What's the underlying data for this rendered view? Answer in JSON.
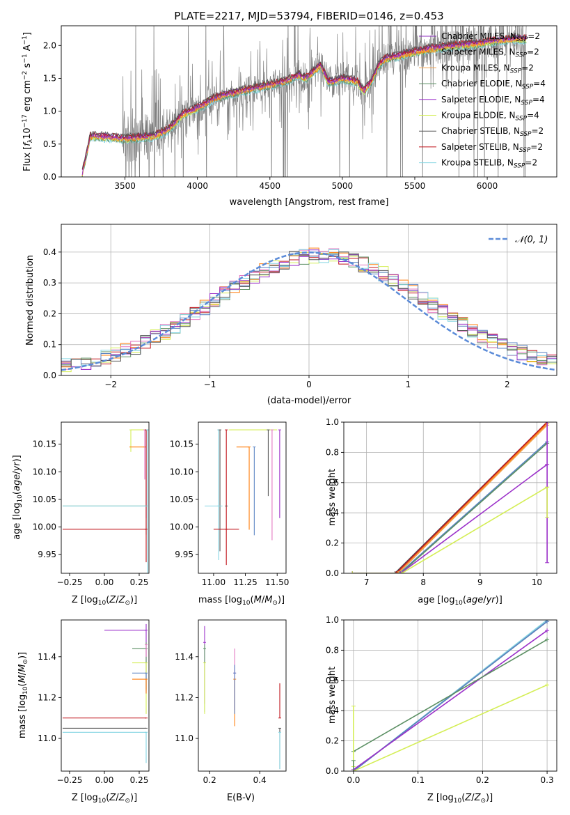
{
  "colors": {
    "chabrier_miles": "#8c2fbf",
    "salpeter_miles": "#ff7f0e",
    "kroupa_miles": "#f0a04b",
    "chabrier_elodie": "#5b8f63",
    "salpeter_elodie": "#9b30c9",
    "kroupa_elodie": "#d4ee55",
    "chabrier_stelib": "#555555",
    "salpeter_stelib": "#c0141c",
    "kroupa_stelib": "#86d6e3",
    "spectrum_gray": "#808080",
    "normal_curve": "#5b8bd8",
    "pink": "#e377c2",
    "blue": "#5a84c4",
    "grid": "#b0b0b0"
  },
  "legend_labels": [
    {
      "pre": "Chabrier MILES, N",
      "sub": "SSP",
      "post": "=2",
      "color_key": "chabrier_miles"
    },
    {
      "pre": "Salpeter MILES, N",
      "sub": "SSP",
      "post": "=2",
      "color_key": "salpeter_miles"
    },
    {
      "pre": "Kroupa MILES, N",
      "sub": "SSP",
      "post": "=2",
      "color_key": "kroupa_miles"
    },
    {
      "pre": "Chabrier ELODIE, N",
      "sub": "SSP",
      "post": "=4",
      "color_key": "chabrier_elodie"
    },
    {
      "pre": "Salpeter ELODIE, N",
      "sub": "SSP",
      "post": "=4",
      "color_key": "salpeter_elodie"
    },
    {
      "pre": "Kroupa ELODIE, N",
      "sub": "SSP",
      "post": "=4",
      "color_key": "kroupa_elodie"
    },
    {
      "pre": "Chabrier STELIB, N",
      "sub": "SSP",
      "post": "=2",
      "color_key": "chabrier_stelib"
    },
    {
      "pre": "Salpeter STELIB, N",
      "sub": "SSP",
      "post": "=2",
      "color_key": "salpeter_stelib"
    },
    {
      "pre": "Kroupa STELIB, N",
      "sub": "SSP",
      "post": "=2",
      "color_key": "kroupa_stelib"
    }
  ],
  "chart_data": [
    {
      "type": "line",
      "title": "PLATE=2217, MJD=53794, FIBERID=0146, z=0.453",
      "xlabel": "wavelength [Angstrom, rest frame]",
      "ylabel": "Flux [fλ10⁻¹⁷ erg cm⁻² s⁻¹ A⁻¹]",
      "xlim": [
        3060,
        6480
      ],
      "ylim": [
        0,
        2.3
      ],
      "xticks": [
        3500,
        4000,
        4500,
        5000,
        5500,
        6000
      ],
      "yticks": [
        0.0,
        0.5,
        1.0,
        1.5,
        2.0
      ],
      "grid": false,
      "legend_position": "top-right",
      "continuum_anchors": {
        "x": [
          3200,
          3260,
          3400,
          3500,
          3700,
          3800,
          3900,
          4000,
          4050,
          4100,
          4200,
          4300,
          4400,
          4500,
          4600,
          4700,
          4750,
          4800,
          4850,
          4900,
          4950,
          5000,
          5100,
          5150,
          5200,
          5250,
          5300,
          5400,
          5500,
          5600,
          5700,
          5800,
          5900,
          6000,
          6100,
          6200,
          6260
        ],
        "y": [
          0.0,
          0.62,
          0.6,
          0.58,
          0.62,
          0.72,
          0.95,
          1.05,
          1.1,
          1.18,
          1.25,
          1.3,
          1.35,
          1.4,
          1.45,
          1.55,
          1.5,
          1.6,
          1.7,
          1.45,
          1.45,
          1.5,
          1.45,
          1.3,
          1.45,
          1.7,
          1.8,
          1.85,
          1.9,
          1.95,
          1.98,
          2.0,
          2.02,
          2.05,
          2.08,
          2.1,
          2.1
        ]
      }
    },
    {
      "type": "line",
      "xlabel": "(data-model)/error",
      "ylabel": "Normed distribution",
      "xlim": [
        -2.5,
        2.5
      ],
      "ylim": [
        0,
        0.49
      ],
      "xticks": [
        -2,
        -1,
        0,
        1,
        2
      ],
      "yticks": [
        0.0,
        0.1,
        0.2,
        0.3,
        0.4
      ],
      "grid": true,
      "legend": "𝒩(0, 1)",
      "legend_position": "top-right",
      "bin_width": 0.1,
      "bin_start": -2.5
    },
    {
      "type": "scatter",
      "xlabel": "Z [log₁₀(Z/Z☉)]",
      "ylabel": "age  [log₁₀(age/yr)]",
      "xlim": [
        -0.31,
        0.32
      ],
      "ylim": [
        9.916,
        10.19
      ],
      "xticks": [
        -0.25,
        0.0,
        0.25
      ],
      "xtick_labels": [
        "−0.25",
        "0.00",
        "0.25"
      ],
      "yticks": [
        9.95,
        10.0,
        10.05,
        10.1,
        10.15
      ],
      "ytick_labels": [
        "9.95",
        "10.00",
        "10.05",
        "10.10",
        "10.15"
      ],
      "points": [
        {
          "x": 0.19,
          "xerr": [
            0.0,
            0.12
          ],
          "y": 10.176,
          "yerr": [
            0.04,
            0.0
          ],
          "c": "kroupa_elodie"
        },
        {
          "x": 0.29,
          "xerr": [
            0.11,
            0.01
          ],
          "y": 10.145,
          "yerr": [
            0.0,
            0.0
          ],
          "c": "salpeter_miles"
        },
        {
          "x": 0.29,
          "xerr": [
            0.0,
            0.0
          ],
          "y": 10.176,
          "yerr": [
            0.09,
            0.0
          ],
          "c": "pink"
        },
        {
          "x": 0.3,
          "xerr": [
            0.0,
            0.0
          ],
          "y": 10.176,
          "yerr": [
            0.16,
            0.0
          ],
          "c": "salpeter_elodie"
        },
        {
          "x": 0.3,
          "xerr": [
            0.0,
            0.0
          ],
          "y": 10.176,
          "yerr": [
            0.19,
            0.0
          ],
          "c": "chabrier_stelib"
        },
        {
          "x": 0.3,
          "xerr": [
            0.0,
            0.0
          ],
          "y": 10.176,
          "yerr": [
            0.24,
            0.0
          ],
          "c": "salpeter_stelib"
        },
        {
          "x": 0.31,
          "xerr": [
            0.0,
            0.0
          ],
          "y": 10.176,
          "yerr": [
            0.26,
            0.0
          ],
          "c": "kroupa_stelib"
        },
        {
          "x": 0.3,
          "xerr": [
            0.6,
            0.0
          ],
          "y": 10.038,
          "yerr": [
            0.0,
            0.0
          ],
          "c": "chabrier_elodie"
        },
        {
          "x": 0.3,
          "xerr": [
            0.6,
            0.0
          ],
          "y": 10.038,
          "yerr": [
            0.0,
            0.0
          ],
          "c": "kroupa_stelib"
        },
        {
          "x": 0.3,
          "xerr": [
            0.6,
            0.0
          ],
          "y": 9.996,
          "yerr": [
            0.0,
            0.0
          ],
          "c": "salpeter_stelib"
        }
      ]
    },
    {
      "type": "scatter",
      "xlabel": "mass [log₁₀(M/M☉)]",
      "ylabel": "",
      "xlim": [
        10.88,
        11.57
      ],
      "ylim": [
        9.916,
        10.19
      ],
      "xticks": [
        11.0,
        11.25,
        11.5
      ],
      "xtick_labels": [
        "11.00",
        "11.25",
        "11.50"
      ],
      "yticks": [
        9.95,
        10.0,
        10.05,
        10.1,
        10.15
      ],
      "ytick_labels": [
        "9.95",
        "10.00",
        "10.05",
        "10.10",
        "10.15"
      ],
      "points": [
        {
          "x": 11.04,
          "xerr": [
            0.0,
            0.0
          ],
          "y": 10.176,
          "yerr": [
            0.236,
            0.0
          ],
          "c": "kroupa_stelib"
        },
        {
          "x": 11.05,
          "xerr": [
            0.0,
            0.0
          ],
          "y": 10.176,
          "yerr": [
            0.22,
            0.0
          ],
          "c": "chabrier_stelib"
        },
        {
          "x": 11.1,
          "xerr": [
            0.0,
            0.0
          ],
          "y": 10.176,
          "yerr": [
            0.245,
            0.0
          ],
          "c": "salpeter_stelib"
        },
        {
          "x": 11.13,
          "xerr": [
            0.0,
            0.37
          ],
          "y": 10.176,
          "yerr": [
            0.0,
            0.0
          ],
          "c": "kroupa_elodie"
        },
        {
          "x": 11.28,
          "xerr": [
            0.1,
            0.0
          ],
          "y": 10.145,
          "yerr": [
            0.15,
            0.0
          ],
          "c": "salpeter_miles"
        },
        {
          "x": 11.32,
          "xerr": [
            0.0,
            0.0
          ],
          "y": 10.145,
          "yerr": [
            0.16,
            0.0
          ],
          "c": "blue"
        },
        {
          "x": 11.43,
          "xerr": [
            0.0,
            0.0
          ],
          "y": 10.176,
          "yerr": [
            0.12,
            0.0
          ],
          "c": "chabrier_stelib"
        },
        {
          "x": 11.46,
          "xerr": [
            0.0,
            0.0
          ],
          "y": 10.176,
          "yerr": [
            0.2,
            0.0
          ],
          "c": "pink"
        },
        {
          "x": 11.52,
          "xerr": [
            0.0,
            0.0
          ],
          "y": 10.176,
          "yerr": [
            0.16,
            0.0
          ],
          "c": "salpeter_elodie"
        },
        {
          "x": 11.04,
          "xerr": [
            0.11,
            0.03
          ],
          "y": 10.038,
          "yerr": [
            0.0,
            0.0
          ],
          "c": "kroupa_stelib"
        },
        {
          "x": 11.1,
          "xerr": [
            0.0,
            0.0
          ],
          "y": 10.038,
          "yerr": [
            0.0,
            0.0
          ],
          "c": "chabrier_stelib"
        },
        {
          "x": 11.1,
          "xerr": [
            0.1,
            0.1
          ],
          "y": 9.996,
          "yerr": [
            0.0,
            0.0
          ],
          "c": "salpeter_stelib"
        }
      ]
    },
    {
      "type": "line",
      "xlabel": "age  [log₁₀(age/yr)]",
      "ylabel": "mass weight",
      "xlim": [
        6.6,
        10.35
      ],
      "ylim": [
        0,
        1.0
      ],
      "xticks": [
        7,
        8,
        9,
        10
      ],
      "yticks": [
        0.0,
        0.2,
        0.4,
        0.6,
        0.8,
        1.0
      ],
      "grid": true,
      "series": [
        {
          "c": "chabrier_stelib",
          "x": [
            6.75,
            7.5,
            10.18
          ],
          "y": [
            0.0,
            0.0,
            1.0
          ]
        },
        {
          "c": "salpeter_stelib",
          "x": [
            6.75,
            7.52,
            10.18
          ],
          "y": [
            0.0,
            0.0,
            1.0
          ]
        },
        {
          "c": "salpeter_miles",
          "x": [
            6.75,
            7.55,
            10.18
          ],
          "y": [
            0.0,
            0.0,
            0.99
          ]
        },
        {
          "c": "kroupa_miles",
          "x": [
            6.75,
            7.56,
            10.18
          ],
          "y": [
            0.0,
            0.0,
            0.98
          ]
        },
        {
          "c": "blue",
          "x": [
            6.75,
            7.58,
            10.18
          ],
          "y": [
            0.0,
            0.0,
            0.87
          ]
        },
        {
          "c": "chabrier_elodie",
          "x": [
            6.75,
            7.6,
            10.18
          ],
          "y": [
            0.0,
            0.0,
            0.86
          ]
        },
        {
          "c": "salpeter_elodie",
          "x": [
            6.75,
            7.6,
            10.18
          ],
          "y": [
            0.0,
            0.0,
            0.72
          ]
        },
        {
          "c": "kroupa_elodie",
          "x": [
            6.75,
            7.62,
            10.18
          ],
          "y": [
            0.0,
            0.0,
            0.57
          ]
        }
      ],
      "errorbars": [
        {
          "x": 10.18,
          "y": 0.7,
          "yerr": [
            0.63,
            0.3
          ],
          "c": "salpeter_elodie"
        },
        {
          "x": 10.18,
          "y": 0.42,
          "yerr": [
            0.05,
            0.15
          ],
          "c": "kroupa_elodie"
        }
      ]
    },
    {
      "type": "scatter",
      "xlabel": "Z [log₁₀(Z/Z☉)]",
      "ylabel": "mass [log₁₀(M/M☉)]",
      "xlim": [
        -0.31,
        0.32
      ],
      "ylim": [
        10.84,
        11.58
      ],
      "xticks": [
        -0.25,
        0.0,
        0.25
      ],
      "xtick_labels": [
        "−0.25",
        "0.00",
        "0.25"
      ],
      "yticks": [
        11.0,
        11.2,
        11.4
      ],
      "ytick_labels": [
        "11.0",
        "11.2",
        "11.4"
      ],
      "points": [
        {
          "x": 0.3,
          "xerr": [
            0.3,
            0.0
          ],
          "y": 11.53,
          "yerr": [
            0.3,
            0.03
          ],
          "c": "salpeter_elodie"
        },
        {
          "x": 0.3,
          "xerr": [
            0.1,
            0.0
          ],
          "y": 11.44,
          "yerr": [
            0.2,
            0.03
          ],
          "c": "chabrier_elodie"
        },
        {
          "x": 0.3,
          "xerr": [
            0.1,
            0.0
          ],
          "y": 11.37,
          "yerr": [
            0.25,
            0.0
          ],
          "c": "kroupa_elodie"
        },
        {
          "x": 0.3,
          "xerr": [
            0.1,
            0.0
          ],
          "y": 11.32,
          "yerr": [
            0.1,
            0.0
          ],
          "c": "blue"
        },
        {
          "x": 0.3,
          "xerr": [
            0.1,
            0.0
          ],
          "y": 11.29,
          "yerr": [
            0.07,
            0.0
          ],
          "c": "salpeter_miles"
        },
        {
          "x": 0.3,
          "xerr": [
            0.6,
            0.0
          ],
          "y": 11.1,
          "yerr": [
            0.0,
            0.0
          ],
          "c": "salpeter_stelib"
        },
        {
          "x": 0.3,
          "xerr": [
            0.6,
            0.0
          ],
          "y": 11.05,
          "yerr": [
            0.0,
            0.0
          ],
          "c": "chabrier_stelib"
        },
        {
          "x": 0.3,
          "xerr": [
            0.6,
            0.0
          ],
          "y": 11.03,
          "yerr": [
            0.0,
            0.0
          ],
          "c": "kroupa_stelib"
        },
        {
          "x": 0.3,
          "xerr": [
            0.0,
            0.0
          ],
          "y": 11.03,
          "yerr": [
            0.15,
            0.0
          ],
          "c": "kroupa_stelib"
        },
        {
          "x": 0.3,
          "xerr": [
            0.0,
            0.0
          ],
          "y": 11.46,
          "yerr": [
            0.06,
            0.0
          ],
          "c": "pink"
        }
      ]
    },
    {
      "type": "scatter",
      "xlabel": "E(B-V)",
      "ylabel": "",
      "xlim": [
        0.155,
        0.505
      ],
      "ylim": [
        10.84,
        11.58
      ],
      "xticks": [
        0.2,
        0.4
      ],
      "xtick_labels": [
        "0.2",
        "0.4"
      ],
      "yticks": [
        11.0,
        11.2,
        11.4
      ],
      "ytick_labels": [
        "11.0",
        "11.2",
        "11.4"
      ],
      "points": [
        {
          "x": 0.18,
          "xerr": [
            0.0,
            0.0
          ],
          "y": 11.47,
          "yerr": [
            0.3,
            0.08
          ],
          "c": "salpeter_elodie"
        },
        {
          "x": 0.18,
          "xerr": [
            0.0,
            0.0
          ],
          "y": 11.44,
          "yerr": [
            0.31,
            0.02
          ],
          "c": "chabrier_elodie"
        },
        {
          "x": 0.18,
          "xerr": [
            0.0,
            0.0
          ],
          "y": 11.37,
          "yerr": [
            0.25,
            0.0
          ],
          "c": "kroupa_elodie"
        },
        {
          "x": 0.3,
          "xerr": [
            0.0,
            0.0
          ],
          "y": 11.32,
          "yerr": [
            0.18,
            0.12
          ],
          "c": "pink"
        },
        {
          "x": 0.3,
          "xerr": [
            0.0,
            0.0
          ],
          "y": 11.29,
          "yerr": [
            0.23,
            0.0
          ],
          "c": "salpeter_miles"
        },
        {
          "x": 0.3,
          "xerr": [
            0.0,
            0.0
          ],
          "y": 11.32,
          "yerr": [
            0.2,
            0.04
          ],
          "c": "blue"
        },
        {
          "x": 0.48,
          "xerr": [
            0.0,
            0.0
          ],
          "y": 11.1,
          "yerr": [
            0.0,
            0.17
          ],
          "c": "salpeter_stelib"
        },
        {
          "x": 0.48,
          "xerr": [
            0.0,
            0.0
          ],
          "y": 11.05,
          "yerr": [
            0.2,
            0.0
          ],
          "c": "chabrier_stelib"
        },
        {
          "x": 0.48,
          "xerr": [
            0.0,
            0.0
          ],
          "y": 11.03,
          "yerr": [
            0.18,
            0.0
          ],
          "c": "kroupa_stelib"
        }
      ]
    },
    {
      "type": "line",
      "xlabel": "Z [log₁₀(Z/Z☉)]",
      "ylabel": "mass weight",
      "xlim": [
        -0.015,
        0.315
      ],
      "ylim": [
        0,
        1.0
      ],
      "xticks": [
        0.0,
        0.1,
        0.2,
        0.3
      ],
      "yticks": [
        0.0,
        0.2,
        0.4,
        0.6,
        0.8,
        1.0
      ],
      "grid": true,
      "series": [
        {
          "c": "kroupa_stelib",
          "x": [
            0.0,
            0.3
          ],
          "y": [
            0.0,
            1.0
          ]
        },
        {
          "c": "chabrier_stelib",
          "x": [
            0.0,
            0.3
          ],
          "y": [
            0.0,
            0.99
          ]
        },
        {
          "c": "blue",
          "x": [
            0.0,
            0.3
          ],
          "y": [
            0.0,
            0.99
          ]
        },
        {
          "c": "salpeter_elodie",
          "x": [
            0.0,
            0.3
          ],
          "y": [
            0.01,
            0.93
          ]
        },
        {
          "c": "chabrier_elodie",
          "x": [
            0.0,
            0.3
          ],
          "y": [
            0.13,
            0.87
          ]
        },
        {
          "c": "kroupa_elodie",
          "x": [
            0.0,
            0.3
          ],
          "y": [
            0.0,
            0.57
          ]
        }
      ],
      "errorbars": [
        {
          "x": 0.0,
          "y": 0.13,
          "yerr": [
            0.1,
            0.3
          ],
          "c": "kroupa_elodie"
        },
        {
          "x": 0.0,
          "y": 0.07,
          "yerr": [
            0.07,
            0.0
          ],
          "c": "chabrier_elodie"
        }
      ]
    }
  ]
}
